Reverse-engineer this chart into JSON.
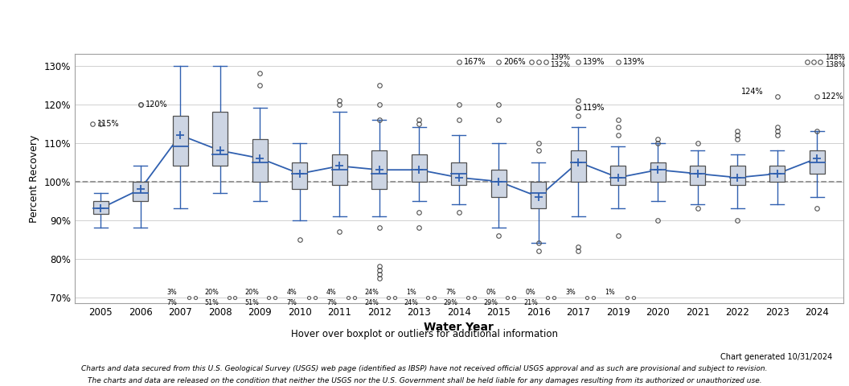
{
  "years": [
    2005,
    2006,
    2007,
    2008,
    2009,
    2010,
    2011,
    2012,
    2013,
    2014,
    2015,
    2016,
    2017,
    2019,
    2020,
    2021,
    2022,
    2023,
    2024
  ],
  "boxes": {
    "2005": {
      "q1": 91.5,
      "median": 93,
      "q3": 95,
      "mean": 93,
      "whisker_low": 88,
      "whisker_high": 97
    },
    "2006": {
      "q1": 95,
      "median": 97,
      "q3": 100,
      "mean": 98,
      "whisker_low": 88,
      "whisker_high": 104
    },
    "2007": {
      "q1": 104,
      "median": 109,
      "q3": 117,
      "mean": 112,
      "whisker_low": 93,
      "whisker_high": 130
    },
    "2008": {
      "q1": 104,
      "median": 107,
      "q3": 118,
      "mean": 108,
      "whisker_low": 97,
      "whisker_high": 130
    },
    "2009": {
      "q1": 100,
      "median": 105,
      "q3": 111,
      "mean": 106,
      "whisker_low": 95,
      "whisker_high": 119
    },
    "2010": {
      "q1": 98,
      "median": 102,
      "q3": 105,
      "mean": 102,
      "whisker_low": 90,
      "whisker_high": 110
    },
    "2011": {
      "q1": 99,
      "median": 103,
      "q3": 107,
      "mean": 104,
      "whisker_low": 91,
      "whisker_high": 118
    },
    "2012": {
      "q1": 98,
      "median": 102,
      "q3": 108,
      "mean": 103,
      "whisker_low": 91,
      "whisker_high": 116
    },
    "2013": {
      "q1": 100,
      "median": 103,
      "q3": 107,
      "mean": 103,
      "whisker_low": 95,
      "whisker_high": 114
    },
    "2014": {
      "q1": 99,
      "median": 102,
      "q3": 105,
      "mean": 101,
      "whisker_low": 94,
      "whisker_high": 112
    },
    "2015": {
      "q1": 96,
      "median": 100,
      "q3": 103,
      "mean": 100,
      "whisker_low": 88,
      "whisker_high": 110
    },
    "2016": {
      "q1": 93,
      "median": 97,
      "q3": 100,
      "mean": 96,
      "whisker_low": 84,
      "whisker_high": 105
    },
    "2017": {
      "q1": 100,
      "median": 105,
      "q3": 108,
      "mean": 105,
      "whisker_low": 91,
      "whisker_high": 114
    },
    "2019": {
      "q1": 99,
      "median": 101,
      "q3": 104,
      "mean": 101,
      "whisker_low": 93,
      "whisker_high": 109
    },
    "2020": {
      "q1": 100,
      "median": 103,
      "q3": 105,
      "mean": 103,
      "whisker_low": 95,
      "whisker_high": 110
    },
    "2021": {
      "q1": 99,
      "median": 102,
      "q3": 104,
      "mean": 102,
      "whisker_low": 94,
      "whisker_high": 108
    },
    "2022": {
      "q1": 99,
      "median": 101,
      "q3": 104,
      "mean": 101,
      "whisker_low": 93,
      "whisker_high": 107
    },
    "2023": {
      "q1": 100,
      "median": 102,
      "q3": 104,
      "mean": 102,
      "whisker_low": 94,
      "whisker_high": 108
    },
    "2024": {
      "q1": 102,
      "median": 105,
      "q3": 108,
      "mean": 106,
      "whisker_low": 96,
      "whisker_high": 113
    }
  },
  "outliers_h": {
    "2005": [
      115
    ],
    "2006": [
      120
    ],
    "2009": [
      125,
      128
    ],
    "2011": [
      120,
      121
    ],
    "2012": [
      116,
      120,
      125
    ],
    "2013": [
      115,
      116
    ],
    "2014": [
      116,
      120
    ],
    "2015": [
      116,
      120
    ],
    "2016": [
      108,
      110
    ],
    "2017": [
      117,
      119,
      121
    ],
    "2019": [
      112,
      114,
      116
    ],
    "2020": [
      110,
      111
    ],
    "2021": [
      110
    ],
    "2022": [
      111,
      112,
      113
    ],
    "2023": [
      112,
      113,
      114
    ],
    "2024": [
      113
    ]
  },
  "outliers_l": {
    "2010": [
      85
    ],
    "2011": [
      87
    ],
    "2012": [
      88,
      78,
      77,
      76,
      75
    ],
    "2013": [
      92,
      88
    ],
    "2014": [
      92
    ],
    "2015": [
      86
    ],
    "2016": [
      84,
      82
    ],
    "2017": [
      83,
      82
    ],
    "2019": [
      86
    ],
    "2020": [
      90
    ],
    "2021": [
      93
    ],
    "2022": [
      90
    ],
    "2024": [
      93
    ]
  },
  "mean_line_y": [
    93,
    98,
    112,
    108,
    106,
    102,
    104,
    103,
    103,
    101,
    100,
    96,
    105,
    101,
    103,
    102,
    101,
    102,
    106
  ],
  "ylim": [
    68.5,
    133
  ],
  "yticks": [
    70,
    80,
    90,
    100,
    110,
    120,
    130
  ],
  "ytick_labels": [
    "70%",
    "80%",
    "90%",
    "100%",
    "110%",
    "120%",
    "130%"
  ],
  "xlabel": "Water Year",
  "ylabel": "Percent Recovery",
  "ref_line": 100,
  "box_color": "#cdd5e3",
  "box_edge_color": "#505050",
  "line_color": "#3060b0",
  "ref_line_color": "#909090",
  "grid_color": "#d0d0d0",
  "subtitle": "Hover over boxplot or outliers for additional information",
  "footer1": "Chart generated 10/31/2024",
  "footer2": "Charts and data secured from this U.S. Geological Survey (USGS) web page (identified as IBSP) have not received official USGS approval and as such are provisional and subject to revision.",
  "footer3": "The charts and data are released on the condition that neither the USGS nor the U.S. Government shall be held liable for any damages resulting from its authorized or unauthorized use."
}
